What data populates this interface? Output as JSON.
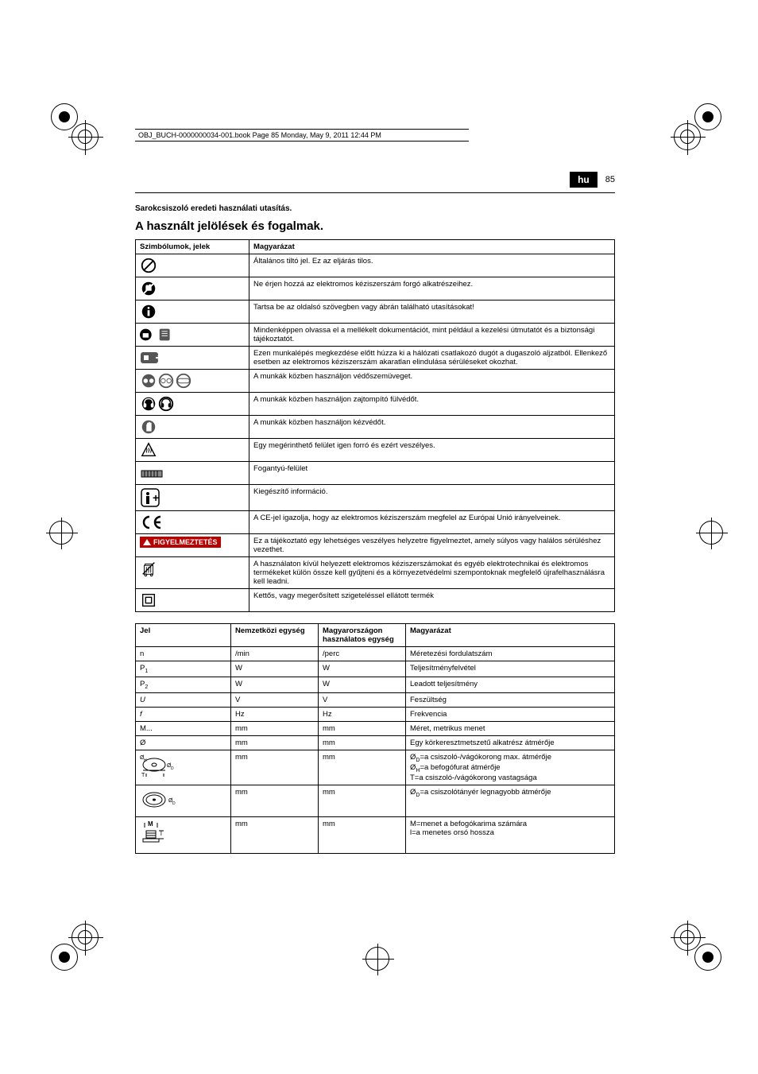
{
  "meta": {
    "header_text": "OBJ_BUCH-0000000034-001.book  Page 85  Monday, May 9, 2011  12:44 PM",
    "lang": "hu",
    "page": "85"
  },
  "headings": {
    "subtitle": "Sarokcsiszoló eredeti használati utasítás.",
    "title": "A használt jelölések és fogalmak."
  },
  "symbol_table": {
    "headers": [
      "Szimbólumok, jelek",
      "Magyarázat"
    ],
    "rows": [
      {
        "icon": "prohibit",
        "text": "Általános tiltó jel. Ez az eljárás tilos."
      },
      {
        "icon": "notouch",
        "text": "Ne érjen hozzá az elektromos kéziszerszám forgó alkatrészeihez."
      },
      {
        "icon": "info",
        "text": "Tartsa be az oldalsó szövegben vagy ábrán található utasításokat!"
      },
      {
        "icon": "readdocs",
        "text": "Mindenképpen olvassa el a mellékelt dokumentációt, mint például a kezelési útmutatót és a biztonsági tájékoztatót."
      },
      {
        "icon": "unplug",
        "text": "Ezen munkalépés megkezdése előtt húzza ki a hálózati csatlakozó dugót a dugaszoló aljzatból. Ellenkező esetben az elektromos kéziszerszám akaratlan elindulása sérüléseket okozhat."
      },
      {
        "icon": "eyes",
        "text": "A munkák közben használjon védőszemüveget."
      },
      {
        "icon": "ears",
        "text": "A munkák közben használjon zajtompító fülvédőt."
      },
      {
        "icon": "gloves",
        "text": "A munkák közben használjon kézvédőt."
      },
      {
        "icon": "hot",
        "text": "Egy megérinthető felület igen forró és ezért veszélyes."
      },
      {
        "icon": "grip",
        "text": "Fogantyú-felület"
      },
      {
        "icon": "extra",
        "text": "Kiegészítő információ."
      },
      {
        "icon": "ce",
        "text": "A CE-jel igazolja, hogy az elektromos kéziszerszám megfelel az Európai Unió irányelveinek."
      },
      {
        "icon": "warn",
        "text": "Ez a tájékoztató egy lehetséges veszélyes helyzetre figyelmeztet, amely súlyos vagy halálos sérüléshez vezethet.",
        "warn_label": "FIGYELMEZTETÉS"
      },
      {
        "icon": "weee",
        "text": "A használaton kívül helyezett elektromos kéziszerszámokat és egyéb elektrotechnikai és elektromos termékeket külön össze kell gyűjteni és a környezetvédelmi szempontoknak megfelelő újrafelhasználásra kell leadni."
      },
      {
        "icon": "class2",
        "text": "Kettős, vagy megerősített szigeteléssel ellátott termék"
      }
    ]
  },
  "unit_table": {
    "headers": [
      "Jel",
      "Nemzetközi egység",
      "Magyarországon használatos egység",
      "Magyarázat"
    ],
    "rows": [
      {
        "c1": "n",
        "c2": "/min",
        "c3": "/perc",
        "c4": "Méretezési fordulatszám"
      },
      {
        "c1": "P₁",
        "c2": "W",
        "c3": "W",
        "c4": "Teljesítményfelvétel"
      },
      {
        "c1": "P₂",
        "c2": "W",
        "c3": "W",
        "c4": "Leadott teljesítmény"
      },
      {
        "c1": "U",
        "c2": "V",
        "c3": "V",
        "c4": "Feszültség"
      },
      {
        "c1": "f",
        "c2": "Hz",
        "c3": "Hz",
        "c4": "Frekvencia"
      },
      {
        "c1": "M...",
        "c2": "mm",
        "c3": "mm",
        "c4": "Méret, metrikus menet"
      },
      {
        "c1": "Ø",
        "c2": "mm",
        "c3": "mm",
        "c4": "Egy körkeresztmetszetű alkatrész átmérője"
      },
      {
        "c1": "disc",
        "c2": "mm",
        "c3": "mm",
        "c4": "Ø_D=a csiszoló-/vágókorong max. átmérője\nØ_H=a befogófurat átmérője\nT=a csiszoló-/vágókorong vastagsága"
      },
      {
        "c1": "pad",
        "c2": "mm",
        "c3": "mm",
        "c4": "Ø_D=a csiszolótányér legnagyobb átmérője"
      },
      {
        "c1": "spindle",
        "c2": "mm",
        "c3": "mm",
        "c4": "M=menet a befogókarima számára\nl=a menetes orsó hossza"
      }
    ]
  }
}
